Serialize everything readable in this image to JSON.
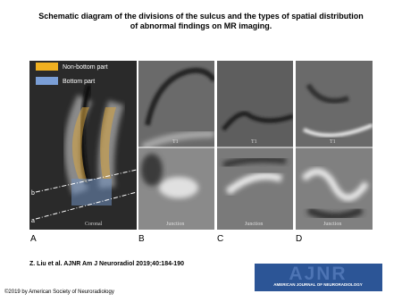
{
  "title": "Schematic diagram of the divisions of the sulcus and the types of spatial distribution of abnormal findings on MR imaging.",
  "figure": {
    "legend": [
      "Non-bottom part",
      "Bottom part"
    ],
    "line_labels": [
      "b",
      "a"
    ],
    "panel_a_caption": "Coronal",
    "top_captions": [
      "T1",
      "T1",
      "T1"
    ],
    "bottom_captions": [
      "Junction",
      "Junction",
      "Junction"
    ],
    "panel_letters": [
      "A",
      "B",
      "C",
      "D"
    ]
  },
  "citation": "Z. Liu et al. AJNR Am J Neuroradiol 2019;40:184-190",
  "logo": {
    "title": "AJNR",
    "subtitle": "AMERICAN JOURNAL OF NEURORADIOLOGY"
  },
  "copyright": "©2019 by American Society of Neuroradiology"
}
